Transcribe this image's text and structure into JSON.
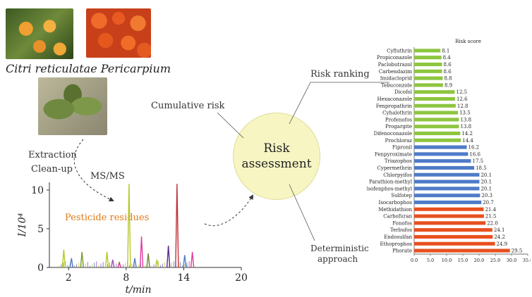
{
  "photos": {
    "caption": "Citri reticulatae Pericarpium"
  },
  "steps": {
    "extraction": "Extraction",
    "cleanup": "Clean-up",
    "msms": "MS/MS",
    "pesticide_residues": "Pesticide residues",
    "cumulative_risk": "Cumulative risk",
    "risk_ranking": "Risk ranking",
    "deterministic_line1": "Deterministic",
    "deterministic_line2": "approach",
    "risk_line1": "Risk",
    "risk_line2": "assessment"
  },
  "colors": {
    "green": "#8dc63f",
    "blue": "#4f7bc8",
    "red": "#e8501f",
    "circle": "#f7f5c2",
    "orange_text": "#e07b16"
  },
  "chart_data": [
    {
      "type": "line",
      "xlabel": "t/min",
      "ylabel": "I/10⁴",
      "xticks": [
        2,
        8,
        14,
        20
      ],
      "yticks": [
        0,
        5,
        10
      ],
      "xlim": [
        0,
        20
      ],
      "ylim": [
        0,
        11
      ],
      "peaks": [
        {
          "x": 1.5,
          "y": 2.3,
          "color": "#b7c82a"
        },
        {
          "x": 2.3,
          "y": 1.2,
          "color": "#4f7bc8"
        },
        {
          "x": 3.4,
          "y": 2.0,
          "color": "#7a9a2a"
        },
        {
          "x": 6.0,
          "y": 2.0,
          "color": "#b7c82a"
        },
        {
          "x": 6.6,
          "y": 1.0,
          "color": "#9a55c4"
        },
        {
          "x": 7.3,
          "y": 0.6,
          "color": "#d03a8a"
        },
        {
          "x": 8.3,
          "y": 10.8,
          "color": "#b7c82a"
        },
        {
          "x": 8.9,
          "y": 1.2,
          "color": "#4f7bc8"
        },
        {
          "x": 9.6,
          "y": 4.0,
          "color": "#e03aa0"
        },
        {
          "x": 10.3,
          "y": 1.8,
          "color": "#6a8a3a"
        },
        {
          "x": 11.2,
          "y": 1.0,
          "color": "#b7c82a"
        },
        {
          "x": 12.4,
          "y": 2.8,
          "color": "#5a2a8a"
        },
        {
          "x": 13.3,
          "y": 10.8,
          "color": "#c0303a"
        },
        {
          "x": 14.1,
          "y": 1.6,
          "color": "#4f7bc8"
        },
        {
          "x": 14.9,
          "y": 2.0,
          "color": "#e03aa0"
        }
      ]
    },
    {
      "type": "bar",
      "title": "Risk score",
      "xlim": [
        0,
        35
      ],
      "xticks": [
        "0.0",
        "5.0",
        "10.0",
        "15.0",
        "20.0",
        "25.0",
        "30.0",
        "35.0"
      ],
      "categories": [
        "Cyfluthrin",
        "Propiconazole",
        "Paclobutrazol",
        "Carbendazim",
        "Imidacloprid",
        "Tebuconzole",
        "Dicofol",
        "Hexaconazole",
        "Fenpropathrin",
        "Cyhalothrin",
        "Profenofos",
        "Progargite",
        "Difenoconazole",
        "Prochloraz",
        "Fipronil",
        "Fenpyroximate",
        "Triazophos",
        "Cypermethrin",
        "Chlorpyifos",
        "Parathion-methyl",
        "Isofenphos-methyl",
        "Sulfotep",
        "Isocarbophos",
        "Methidathion",
        "Carbofuran",
        "Fonofos",
        "Terbufos",
        "Endosulfan",
        "Ethoprophos",
        "Phorate"
      ],
      "values": [
        8.1,
        8.4,
        8.6,
        8.6,
        8.8,
        8.9,
        12.5,
        12.6,
        12.8,
        13.5,
        13.8,
        13.8,
        14.2,
        14.4,
        16.2,
        16.6,
        17.5,
        18.5,
        20.1,
        20.1,
        20.1,
        20.3,
        20.7,
        21.4,
        21.5,
        22.0,
        24.1,
        24.2,
        24.9,
        29.5
      ],
      "value_labels": [
        "8.1",
        "8.4",
        "8.6",
        "8.6",
        "8.8",
        "8.9",
        "12.5",
        "12.6",
        "12.8",
        "13.5",
        "13.8",
        "13.8",
        "14.2",
        "14.4",
        "16.2",
        "16.6",
        "17.5",
        "18.5",
        "20.1",
        "20.1",
        "20.1",
        "20.3",
        "20.7",
        "21.4",
        "21.5",
        "22.0",
        "24.1",
        "24.2",
        "24.9",
        "29.5"
      ],
      "groups": [
        "green",
        "green",
        "green",
        "green",
        "green",
        "green",
        "green",
        "green",
        "green",
        "green",
        "green",
        "green",
        "green",
        "green",
        "blue",
        "blue",
        "blue",
        "blue",
        "blue",
        "blue",
        "blue",
        "blue",
        "blue",
        "red",
        "red",
        "red",
        "red",
        "red",
        "red",
        "red"
      ]
    }
  ]
}
